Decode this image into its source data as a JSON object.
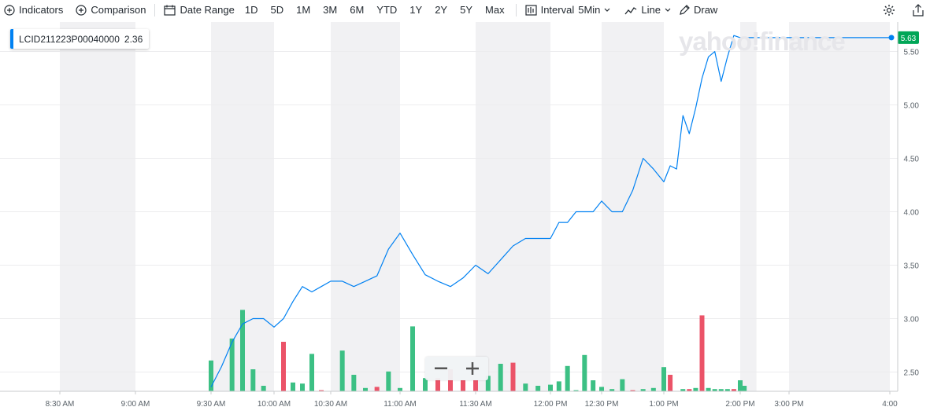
{
  "toolbar": {
    "indicators": "Indicators",
    "comparison": "Comparison",
    "date_range": "Date Range",
    "ranges": [
      "1D",
      "5D",
      "1M",
      "3M",
      "6M",
      "YTD",
      "1Y",
      "2Y",
      "5Y",
      "Max"
    ],
    "interval_label": "Interval",
    "interval_value": "5Min",
    "line_label": "Line",
    "draw_label": "Draw",
    "icons": [
      "plus-circle-icon",
      "calendar-icon",
      "candle-icon",
      "line-chart-icon",
      "pencil-icon",
      "gear-icon",
      "share-icon"
    ]
  },
  "legend": {
    "symbol": "LCID211223P00040000",
    "value": "2.36",
    "color": "#0081f2"
  },
  "watermark": "yahoo!finance",
  "zoom": {
    "minus": "−",
    "plus": "+"
  },
  "chart_data": {
    "type": "line",
    "title": "",
    "xlabel": "",
    "ylabel": "",
    "ylim": [
      2.29,
      5.71
    ],
    "y_ticks": [
      "2.50",
      "3.00",
      "3.50",
      "4.00",
      "4.50",
      "5.00",
      "5.50"
    ],
    "x_tick_labels": [
      "8:30 AM",
      "9:00 AM",
      "9:30 AM",
      "10:00 AM",
      "10:30 AM",
      "11:00 AM",
      "11:30 AM",
      "12:00 PM",
      "12:30 PM",
      "1:00 PM",
      "2:00 PM",
      "3:00 PM",
      "4:00"
    ],
    "x_tick_times": [
      "08:30",
      "09:00",
      "09:30",
      "10:00",
      "10:30",
      "11:00",
      "11:30",
      "12:00",
      "12:30",
      "13:00",
      "14:00",
      "15:00",
      "16:00"
    ],
    "last_price": "5.63",
    "colors": {
      "line": "#0081f2",
      "up": "#3cc084",
      "down": "#eb5368",
      "band": "#f1f1f3",
      "price_tag": "#01a657"
    },
    "time_window": [
      "08:00",
      "16:00"
    ],
    "shaded_bands": [
      [
        "08:30",
        "09:00"
      ],
      [
        "09:30",
        "10:00"
      ],
      [
        "10:30",
        "11:00"
      ],
      [
        "11:30",
        "12:00"
      ],
      [
        "12:30",
        "13:00"
      ],
      [
        "14:00",
        "14:20"
      ],
      [
        "15:00",
        "16:00"
      ]
    ],
    "series": [
      {
        "type": "line",
        "times": [
          "09:30",
          "09:35",
          "09:40",
          "09:45",
          "09:50",
          "09:55",
          "10:00",
          "10:05",
          "10:10",
          "10:15",
          "10:20",
          "10:25",
          "10:30",
          "10:35",
          "10:40",
          "10:45",
          "10:50",
          "10:55",
          "11:00",
          "11:05",
          "11:10",
          "11:15",
          "11:20",
          "11:25",
          "11:30",
          "11:35",
          "11:40",
          "11:45",
          "11:50",
          "11:55",
          "12:00",
          "12:05",
          "12:10",
          "12:15",
          "12:20",
          "12:25",
          "12:30",
          "12:35",
          "12:40",
          "12:45",
          "12:50",
          "12:55",
          "13:00",
          "13:05",
          "13:10",
          "13:15",
          "13:20",
          "13:25",
          "13:30",
          "13:35",
          "13:40",
          "13:45",
          "13:50",
          "13:55",
          "14:00",
          "14:05",
          "14:10",
          "14:15",
          "14:20",
          "14:25",
          "14:30",
          "14:35",
          "14:40",
          "14:45",
          "14:50",
          "14:55",
          "15:00",
          "15:05",
          "15:10",
          "15:15",
          "15:20",
          "15:25",
          "15:30",
          "15:35",
          "15:40",
          "15:45",
          "15:50",
          "15:55",
          "16:00"
        ],
        "values": [
          2.36,
          2.55,
          2.78,
          2.95,
          3.0,
          3.0,
          2.92,
          3.0,
          3.16,
          3.3,
          3.25,
          3.3,
          3.35,
          3.35,
          3.3,
          3.35,
          3.4,
          3.65,
          3.8,
          3.6,
          3.41,
          3.35,
          3.3,
          3.38,
          3.5,
          3.42,
          3.55,
          3.68,
          3.75,
          3.75,
          3.75,
          3.9,
          3.9,
          4.0,
          4.0,
          4.0,
          4.1,
          4.0,
          4.0,
          4.2,
          4.5,
          4.4,
          4.28,
          4.43,
          4.4,
          4.9,
          4.73,
          4.97,
          5.25,
          5.45,
          5.5,
          5.22,
          5.45,
          5.65,
          5.63,
          5.63,
          5.63,
          5.63,
          5.63,
          5.63,
          5.63,
          5.63,
          5.63,
          5.63,
          5.63,
          5.63,
          5.63,
          5.63,
          5.63,
          5.63,
          5.63,
          5.63,
          5.63,
          5.63,
          5.63,
          5.63,
          5.63,
          5.63,
          5.63
        ]
      },
      {
        "type": "volume",
        "bars": [
          [
            "09:30",
            0.28,
            "up"
          ],
          [
            "09:40",
            0.48,
            "up"
          ],
          [
            "09:45",
            0.74,
            "up"
          ],
          [
            "09:50",
            0.2,
            "up"
          ],
          [
            "09:55",
            0.05,
            "up"
          ],
          [
            "10:05",
            0.45,
            "down"
          ],
          [
            "10:10",
            0.08,
            "up"
          ],
          [
            "10:15",
            0.07,
            "up"
          ],
          [
            "10:20",
            0.34,
            "up"
          ],
          [
            "10:25",
            0.01,
            "down"
          ],
          [
            "10:35",
            0.37,
            "up"
          ],
          [
            "10:40",
            0.15,
            "up"
          ],
          [
            "10:45",
            0.03,
            "up"
          ],
          [
            "10:50",
            0.04,
            "down"
          ],
          [
            "10:55",
            0.18,
            "up"
          ],
          [
            "11:00",
            0.03,
            "up"
          ],
          [
            "11:05",
            0.59,
            "up"
          ],
          [
            "11:10",
            0.12,
            "up"
          ],
          [
            "11:15",
            0.12,
            "down"
          ],
          [
            "11:20",
            0.2,
            "down"
          ],
          [
            "11:25",
            0.1,
            "down"
          ],
          [
            "11:30",
            0.1,
            "down"
          ],
          [
            "11:35",
            0.14,
            "up"
          ],
          [
            "11:40",
            0.25,
            "up"
          ],
          [
            "11:45",
            0.26,
            "down"
          ],
          [
            "11:50",
            0.07,
            "up"
          ],
          [
            "11:55",
            0.05,
            "up"
          ],
          [
            "12:00",
            0.06,
            "up"
          ],
          [
            "12:05",
            0.09,
            "up"
          ],
          [
            "12:10",
            0.23,
            "up"
          ],
          [
            "12:15",
            0.01,
            "up"
          ],
          [
            "12:20",
            0.33,
            "up"
          ],
          [
            "12:25",
            0.1,
            "up"
          ],
          [
            "12:30",
            0.04,
            "up"
          ],
          [
            "12:35",
            0.02,
            "up"
          ],
          [
            "12:40",
            0.11,
            "up"
          ],
          [
            "12:45",
            0.01,
            "down"
          ],
          [
            "12:50",
            0.02,
            "up"
          ],
          [
            "12:55",
            0.03,
            "up"
          ],
          [
            "13:00",
            0.22,
            "up"
          ],
          [
            "13:05",
            0.15,
            "down"
          ],
          [
            "13:15",
            0.02,
            "up"
          ],
          [
            "13:20",
            0.02,
            "down"
          ],
          [
            "13:25",
            0.03,
            "up"
          ],
          [
            "13:30",
            0.69,
            "down"
          ],
          [
            "13:35",
            0.03,
            "up"
          ],
          [
            "13:40",
            0.02,
            "up"
          ],
          [
            "13:45",
            0.02,
            "up"
          ],
          [
            "13:50",
            0.02,
            "up"
          ],
          [
            "13:55",
            0.02,
            "down"
          ],
          [
            "14:00",
            0.1,
            "up"
          ],
          [
            "14:05",
            0.05,
            "up"
          ]
        ]
      }
    ]
  }
}
